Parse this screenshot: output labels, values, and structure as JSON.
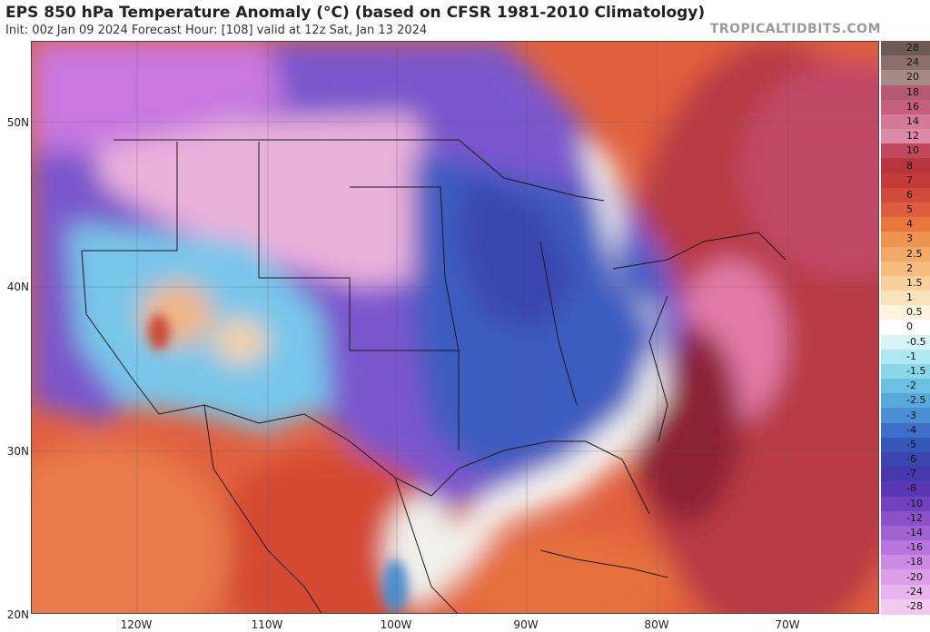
{
  "header": {
    "title": "EPS 850 hPa Temperature Anomaly (°C) (based on CFSR 1981-2010 Climatology)",
    "subtitle": "Init: 00z Jan 09 2024   Forecast Hour: [108]   valid at 12z Sat, Jan 13 2024",
    "brand": "TROPICALTIDBITS.COM"
  },
  "axes": {
    "lat_labels": [
      "50N",
      "40N",
      "30N",
      "20N"
    ],
    "lon_labels": [
      "120W",
      "110W",
      "100W",
      "90W",
      "80W",
      "70W"
    ]
  },
  "colorbar": {
    "labels": [
      "28",
      "24",
      "20",
      "18",
      "16",
      "14",
      "12",
      "10",
      "8",
      "7",
      "6",
      "5",
      "4",
      "3",
      "2.5",
      "2",
      "1.5",
      "1",
      "0.5",
      "0",
      "-0.5",
      "-1",
      "-1.5",
      "-2",
      "-2.5",
      "-3",
      "-4",
      "-5",
      "-6",
      "-7",
      "-8",
      "-10",
      "-12",
      "-14",
      "-16",
      "-18",
      "-20",
      "-24",
      "-28"
    ],
    "colors": [
      "#6e5a54",
      "#8a6f6a",
      "#a88a85",
      "#b65a72",
      "#c4607e",
      "#d27a98",
      "#dc8aa8",
      "#c0485a",
      "#b8343e",
      "#c43a36",
      "#d04a3a",
      "#dc5e3e",
      "#e6783e",
      "#ee9450",
      "#f2a866",
      "#f6bc80",
      "#f8d09c",
      "#fae2bc",
      "#fdf2dc",
      "#ffffff",
      "#d8f4f6",
      "#aee8f0",
      "#8cd6ea",
      "#6cc0e4",
      "#58a8dc",
      "#4c8ed4",
      "#3f6fc8",
      "#3557b8",
      "#3a46ae",
      "#4838ae",
      "#5a36b4",
      "#7042be",
      "#8a52c8",
      "#a064d2",
      "#b876dc",
      "#cc8ae4",
      "#dc9ee8",
      "#e8b4ec",
      "#f2caf0"
    ]
  }
}
